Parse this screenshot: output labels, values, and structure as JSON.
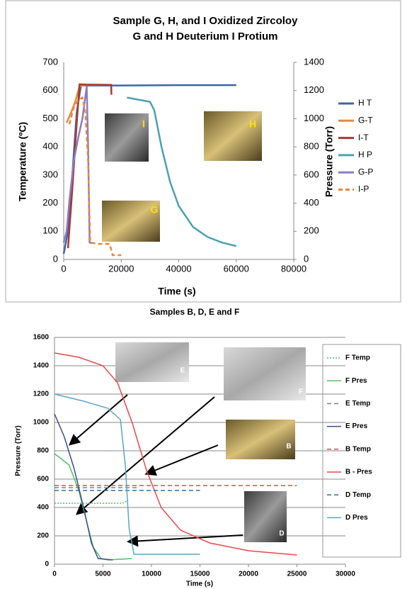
{
  "chart_data": [
    {
      "type": "line",
      "title": "Sample G, H, and I Oxidized Zircoloy",
      "subtitle": "G and H Deuterium I Protium",
      "x_label": "Time (s)",
      "y_label": "Temperature (ºC)",
      "y2_label": "Pressure (Torr)",
      "xlim": [
        0,
        80000
      ],
      "xticks": [
        0,
        20000,
        40000,
        60000,
        80000
      ],
      "ylim": [
        0,
        700
      ],
      "yticks": [
        0,
        100,
        200,
        300,
        400,
        500,
        600,
        700
      ],
      "y2lim": [
        0,
        1400
      ],
      "y2ticks": [
        0,
        200,
        400,
        600,
        800,
        1000,
        1200,
        1400
      ],
      "grid": false,
      "legend": "right",
      "annotations": [
        "I",
        "H",
        "G"
      ],
      "series": [
        {
          "name": "H T",
          "color": "#3a67a6",
          "dash": "solid",
          "x": [
            0,
            1500,
            3000,
            4500,
            6000,
            20000,
            40000,
            60000
          ],
          "values": [
            20,
            100,
            300,
            520,
            618,
            618,
            619,
            619
          ]
        },
        {
          "name": "G-T",
          "color": "#e8893a",
          "dash": "solid",
          "x": [
            1000,
            2500,
            4000,
            5500,
            8000,
            16500
          ],
          "values": [
            485,
            520,
            560,
            615,
            620,
            620
          ]
        },
        {
          "name": "I-T",
          "color": "#a83a32",
          "dash": "solid",
          "x": [
            1500,
            3000,
            4500,
            5500,
            8000,
            16500,
            16600
          ],
          "values": [
            40,
            250,
            480,
            622,
            621,
            620,
            585
          ]
        },
        {
          "name": "H P",
          "color": "#4ba0b4",
          "dash": "solid",
          "axis": "y2",
          "x": [
            22000,
            26000,
            30000,
            31500,
            34000,
            37000,
            40000,
            45000,
            50000,
            55000,
            60000
          ],
          "values": [
            1150,
            1135,
            1120,
            1060,
            800,
            550,
            380,
            230,
            160,
            120,
            95
          ]
        },
        {
          "name": "G-P",
          "color": "#8e7cc3",
          "dash": "solid",
          "axis": "y2",
          "x": [
            0,
            1000,
            2000,
            3500,
            5000,
            6500,
            8000,
            8500,
            9000,
            10000
          ],
          "values": [
            120,
            200,
            420,
            700,
            860,
            1000,
            1230,
            800,
            120,
            115
          ]
        },
        {
          "name": "I-P",
          "color": "#e8893a",
          "dash": "dashed",
          "axis": "y2",
          "x": [
            2000,
            3500,
            5000,
            6500,
            7500,
            8500,
            9200,
            12000,
            16000,
            17000,
            20000
          ],
          "values": [
            960,
            1080,
            1130,
            1150,
            1050,
            700,
            120,
            110,
            110,
            30,
            30
          ]
        }
      ]
    },
    {
      "type": "line",
      "title": "Samples B, D, E and F",
      "x_label": "Time (s)",
      "y_label": "Pressure (Torr)",
      "xlim": [
        0,
        30000
      ],
      "xticks": [
        0,
        5000,
        10000,
        15000,
        20000,
        25000,
        30000
      ],
      "ylim": [
        0,
        1600
      ],
      "yticks": [
        0,
        200,
        400,
        600,
        800,
        1000,
        1200,
        1400,
        1600
      ],
      "grid": true,
      "legend": "right",
      "annotations": [
        "E",
        "F",
        "B",
        "D"
      ],
      "series": [
        {
          "name": "F Temp",
          "color": "#4fc06a",
          "dash": "dotted",
          "x": [
            0,
            7000,
            7600
          ],
          "values": [
            430,
            430,
            450
          ]
        },
        {
          "name": "F Pres",
          "color": "#4fc06a",
          "dash": "solid",
          "x": [
            0,
            1500,
            2500,
            3200,
            4000,
            4800,
            5500,
            8000
          ],
          "values": [
            780,
            700,
            520,
            330,
            120,
            40,
            30,
            40
          ]
        },
        {
          "name": "E Temp",
          "color": "#6d84a8",
          "dash": "dashed",
          "x": [
            0,
            8500
          ],
          "values": [
            540,
            540
          ]
        },
        {
          "name": "E Pres",
          "color": "#3c4c8c",
          "dash": "solid",
          "x": [
            0,
            1000,
            2000,
            3000,
            3800,
            4500,
            6000
          ],
          "values": [
            1060,
            900,
            680,
            400,
            150,
            40,
            30
          ]
        },
        {
          "name": "B Temp",
          "color": "#e84848",
          "dash": "dashed",
          "x": [
            0,
            25000
          ],
          "values": [
            555,
            555
          ]
        },
        {
          "name": "B - Pres",
          "color": "#e84848",
          "dash": "solid",
          "x": [
            0,
            2500,
            5000,
            6500,
            8000,
            9500,
            11000,
            13000,
            16000,
            20000,
            25000
          ],
          "values": [
            1490,
            1460,
            1400,
            1280,
            1000,
            660,
            400,
            240,
            150,
            95,
            65
          ]
        },
        {
          "name": "D Temp",
          "color": "#2e6fa8",
          "dash": "dashed",
          "x": [
            0,
            15000
          ],
          "values": [
            520,
            520
          ]
        },
        {
          "name": "D Pres",
          "color": "#5aa4c8",
          "dash": "solid",
          "x": [
            0,
            3000,
            5500,
            6800,
            7300,
            7700,
            8200,
            15000
          ],
          "values": [
            1200,
            1150,
            1100,
            1020,
            700,
            250,
            70,
            70
          ]
        }
      ]
    }
  ]
}
